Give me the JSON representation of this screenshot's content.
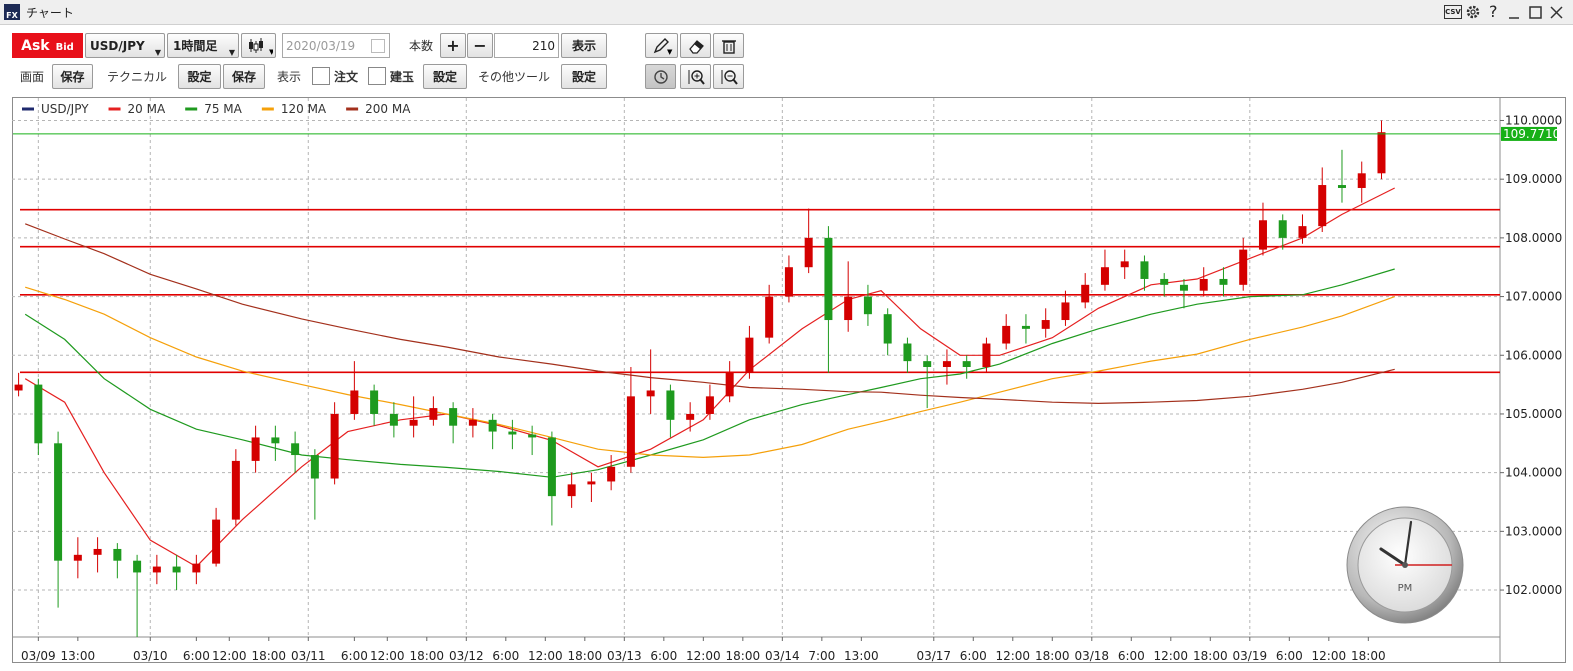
{
  "window": {
    "title": "チャート",
    "logo": "FX",
    "csv": "CSV",
    "help": "?"
  },
  "toolbar": {
    "ask": "Ask",
    "bid": "Bid",
    "pair": "USD/JPY",
    "timeframe": "1時間足",
    "date": "2020/03/19",
    "count_label": "本数",
    "plus": "+",
    "minus": "−",
    "count": 210,
    "show": "表示",
    "screen_label": "画面",
    "screen_save": "保存",
    "technical_label": "テクニカル",
    "technical_settings": "設定",
    "technical_save": "保存",
    "display_label": "表示",
    "orders": "注文",
    "positions": "建玉",
    "display_settings": "設定",
    "other_tools_label": "その他ツール",
    "other_tools_settings": "設定"
  },
  "chart_data": {
    "type": "candlestick",
    "name": "USD/JPY",
    "color": "#1f2a6e",
    "up_color": "#d40000",
    "down_color": "#1e9a1e",
    "xlim": [
      0,
      226
    ],
    "ylim": [
      101.2,
      110.4
    ],
    "yticks": [
      {
        "value": 102,
        "label": "102.0000"
      },
      {
        "value": 103,
        "label": "103.0000"
      },
      {
        "value": 104,
        "label": "104.0000"
      },
      {
        "value": 105,
        "label": "105.0000"
      },
      {
        "value": 106,
        "label": "106.0000"
      },
      {
        "value": 107,
        "label": "107.0000"
      },
      {
        "value": 108,
        "label": "108.0000"
      },
      {
        "value": 109,
        "label": "109.0000"
      },
      {
        "value": 110,
        "label": "110.0000"
      }
    ],
    "xticks": [
      {
        "value": 4,
        "label": "03/09"
      },
      {
        "value": 10,
        "label": "13:00"
      },
      {
        "value": 21,
        "label": "03/10"
      },
      {
        "value": 28,
        "label": "6:00"
      },
      {
        "value": 33,
        "label": "12:00"
      },
      {
        "value": 39,
        "label": "18:00"
      },
      {
        "value": 45,
        "label": "03/11"
      },
      {
        "value": 52,
        "label": "6:00"
      },
      {
        "value": 57,
        "label": "12:00"
      },
      {
        "value": 63,
        "label": "18:00"
      },
      {
        "value": 69,
        "label": "03/12"
      },
      {
        "value": 75,
        "label": "6:00"
      },
      {
        "value": 81,
        "label": "12:00"
      },
      {
        "value": 87,
        "label": "18:00"
      },
      {
        "value": 93,
        "label": "03/13"
      },
      {
        "value": 99,
        "label": "6:00"
      },
      {
        "value": 105,
        "label": "12:00"
      },
      {
        "value": 111,
        "label": "18:00"
      },
      {
        "value": 117,
        "label": "03/14"
      },
      {
        "value": 123,
        "label": "7:00"
      },
      {
        "value": 129,
        "label": "13:00"
      },
      {
        "value": 140,
        "label": "03/17"
      },
      {
        "value": 146,
        "label": "6:00"
      },
      {
        "value": 152,
        "label": "12:00"
      },
      {
        "value": 158,
        "label": "18:00"
      },
      {
        "value": 164,
        "label": "03/18"
      },
      {
        "value": 170,
        "label": "6:00"
      },
      {
        "value": 176,
        "label": "12:00"
      },
      {
        "value": 182,
        "label": "18:00"
      },
      {
        "value": 188,
        "label": "03/19"
      },
      {
        "value": 194,
        "label": "6:00"
      },
      {
        "value": 200,
        "label": "12:00"
      },
      {
        "value": 206,
        "label": "18:00"
      }
    ],
    "grid": true,
    "x": [
      1,
      4,
      7,
      10,
      13,
      16,
      19,
      22,
      25,
      28,
      31,
      34,
      37,
      40,
      43,
      46,
      49,
      52,
      55,
      58,
      61,
      64,
      67,
      70,
      73,
      76,
      79,
      82,
      85,
      88,
      91,
      94,
      97,
      100,
      103,
      106,
      109,
      112,
      115,
      118,
      121,
      124,
      127,
      130,
      133,
      136,
      139,
      142,
      145,
      148,
      151,
      154,
      157,
      160,
      163,
      166,
      169,
      172,
      175,
      178,
      181,
      184,
      187,
      190,
      193,
      196,
      199,
      202,
      205,
      208
    ],
    "candles": [
      [
        105.4,
        105.7,
        105.3,
        105.5
      ],
      [
        105.5,
        105.6,
        104.3,
        104.5
      ],
      [
        104.5,
        104.7,
        101.7,
        102.5
      ],
      [
        102.5,
        102.9,
        102.2,
        102.6
      ],
      [
        102.6,
        102.9,
        102.3,
        102.7
      ],
      [
        102.7,
        102.8,
        102.2,
        102.5
      ],
      [
        102.5,
        102.6,
        101.2,
        102.3
      ],
      [
        102.3,
        102.6,
        102.1,
        102.4
      ],
      [
        102.4,
        102.6,
        102.0,
        102.3
      ],
      [
        102.3,
        102.6,
        102.1,
        102.45
      ],
      [
        102.45,
        103.4,
        102.4,
        103.2
      ],
      [
        103.2,
        104.4,
        103.1,
        104.2
      ],
      [
        104.2,
        104.8,
        104.0,
        104.6
      ],
      [
        104.6,
        104.8,
        104.2,
        104.5
      ],
      [
        104.5,
        104.7,
        104.0,
        104.3
      ],
      [
        104.3,
        104.4,
        103.2,
        103.9
      ],
      [
        103.9,
        105.2,
        103.8,
        105.0
      ],
      [
        105.0,
        105.9,
        104.9,
        105.4
      ],
      [
        105.4,
        105.5,
        104.8,
        105.0
      ],
      [
        105.0,
        105.2,
        104.6,
        104.8
      ],
      [
        104.8,
        105.3,
        104.6,
        104.9
      ],
      [
        104.9,
        105.3,
        104.8,
        105.1
      ],
      [
        105.1,
        105.2,
        104.5,
        104.8
      ],
      [
        104.8,
        105.1,
        104.6,
        104.9
      ],
      [
        104.9,
        105.0,
        104.4,
        104.7
      ],
      [
        104.7,
        104.9,
        104.4,
        104.65
      ],
      [
        104.65,
        104.8,
        104.3,
        104.6
      ],
      [
        104.6,
        104.7,
        103.1,
        103.6
      ],
      [
        103.6,
        104.0,
        103.4,
        103.8
      ],
      [
        103.8,
        104.0,
        103.5,
        103.85
      ],
      [
        103.85,
        104.3,
        103.7,
        104.1
      ],
      [
        104.1,
        105.8,
        104.0,
        105.3
      ],
      [
        105.3,
        106.1,
        105.0,
        105.4
      ],
      [
        105.4,
        105.5,
        104.6,
        104.9
      ],
      [
        104.9,
        105.2,
        104.7,
        105.0
      ],
      [
        105.0,
        105.5,
        104.9,
        105.3
      ],
      [
        105.3,
        105.9,
        105.2,
        105.7
      ],
      [
        105.7,
        106.5,
        105.6,
        106.3
      ],
      [
        106.3,
        107.2,
        106.2,
        107.0
      ],
      [
        107.0,
        107.7,
        106.9,
        107.5
      ],
      [
        107.5,
        108.5,
        107.4,
        108.0
      ],
      [
        108.0,
        108.2,
        105.7,
        106.6
      ],
      [
        106.6,
        107.6,
        106.4,
        107.0
      ],
      [
        107.0,
        107.2,
        106.5,
        106.7
      ],
      [
        106.7,
        106.8,
        106.0,
        106.2
      ],
      [
        106.2,
        106.3,
        105.7,
        105.9
      ],
      [
        105.9,
        106.0,
        105.1,
        105.8
      ],
      [
        105.8,
        106.1,
        105.5,
        105.9
      ],
      [
        105.9,
        106.0,
        105.6,
        105.8
      ],
      [
        105.8,
        106.3,
        105.7,
        106.2
      ],
      [
        106.2,
        106.7,
        106.1,
        106.5
      ],
      [
        106.5,
        106.7,
        106.2,
        106.45
      ],
      [
        106.45,
        106.8,
        106.3,
        106.6
      ],
      [
        106.6,
        107.1,
        106.5,
        106.9
      ],
      [
        106.9,
        107.4,
        106.8,
        107.2
      ],
      [
        107.2,
        107.8,
        107.1,
        107.5
      ],
      [
        107.5,
        107.8,
        107.3,
        107.6
      ],
      [
        107.6,
        107.7,
        107.1,
        107.3
      ],
      [
        107.3,
        107.4,
        107.0,
        107.2
      ],
      [
        107.2,
        107.3,
        106.8,
        107.1
      ],
      [
        107.1,
        107.5,
        107.0,
        107.3
      ],
      [
        107.3,
        107.5,
        107.0,
        107.2
      ],
      [
        107.2,
        108.0,
        107.1,
        107.8
      ],
      [
        107.8,
        108.6,
        107.7,
        108.3
      ],
      [
        108.3,
        108.4,
        107.8,
        108.0
      ],
      [
        108.0,
        108.4,
        107.9,
        108.2
      ],
      [
        108.2,
        109.2,
        108.1,
        108.9
      ],
      [
        108.9,
        109.5,
        108.6,
        108.85
      ],
      [
        108.85,
        109.3,
        108.6,
        109.1
      ],
      [
        109.1,
        110.0,
        109.0,
        109.8
      ]
    ],
    "series": [
      {
        "name": "20 MA",
        "color": "#e52020",
        "x": [
          2,
          8,
          14,
          21,
          28,
          35,
          44,
          51,
          59,
          66,
          74,
          82,
          89,
          97,
          105,
          112,
          120,
          127,
          132,
          138,
          144,
          150,
          158,
          165,
          173,
          180,
          188,
          196,
          202,
          210
        ],
        "values": [
          105.6,
          105.2,
          104.0,
          102.85,
          102.4,
          103.2,
          104.1,
          104.7,
          104.9,
          105.0,
          104.8,
          104.55,
          104.1,
          104.4,
          104.9,
          105.75,
          106.45,
          106.95,
          107.1,
          106.45,
          106.0,
          106.0,
          106.3,
          106.8,
          107.2,
          107.3,
          107.65,
          108.0,
          108.4,
          108.85
        ]
      },
      {
        "name": "75 MA",
        "color": "#1f9a1f",
        "x": [
          2,
          8,
          14,
          21,
          28,
          35,
          44,
          51,
          59,
          66,
          74,
          82,
          89,
          97,
          105,
          112,
          120,
          127,
          132,
          138,
          144,
          150,
          158,
          165,
          173,
          180,
          188,
          196,
          202,
          210
        ],
        "values": [
          106.7,
          106.27,
          105.6,
          105.08,
          104.74,
          104.56,
          104.3,
          104.22,
          104.14,
          104.09,
          104.02,
          103.92,
          104.05,
          104.3,
          104.56,
          104.9,
          105.16,
          105.33,
          105.45,
          105.6,
          105.68,
          105.85,
          106.2,
          106.45,
          106.7,
          106.87,
          107.0,
          107.03,
          107.2,
          107.47
        ]
      },
      {
        "name": "120 MA",
        "color": "#f5a00a",
        "x": [
          2,
          8,
          14,
          21,
          28,
          35,
          44,
          51,
          59,
          66,
          74,
          82,
          89,
          97,
          105,
          112,
          120,
          127,
          132,
          138,
          144,
          150,
          158,
          165,
          173,
          180,
          188,
          196,
          202,
          210
        ],
        "values": [
          107.16,
          106.95,
          106.7,
          106.3,
          105.97,
          105.73,
          105.5,
          105.33,
          105.16,
          105.0,
          104.82,
          104.6,
          104.4,
          104.3,
          104.26,
          104.3,
          104.48,
          104.74,
          104.87,
          105.04,
          105.2,
          105.37,
          105.6,
          105.73,
          105.9,
          106.02,
          106.27,
          106.48,
          106.67,
          107.0
        ]
      },
      {
        "name": "200 MA",
        "color": "#a3301c",
        "x": [
          2,
          8,
          14,
          21,
          28,
          35,
          44,
          51,
          59,
          66,
          74,
          82,
          89,
          97,
          105,
          112,
          120,
          127,
          132,
          138,
          144,
          150,
          158,
          165,
          173,
          180,
          188,
          196,
          202,
          210
        ],
        "values": [
          108.24,
          107.98,
          107.73,
          107.38,
          107.13,
          106.87,
          106.62,
          106.45,
          106.27,
          106.14,
          105.97,
          105.85,
          105.73,
          105.62,
          105.54,
          105.45,
          105.42,
          105.38,
          105.37,
          105.32,
          105.28,
          105.25,
          105.2,
          105.18,
          105.2,
          105.23,
          105.3,
          105.42,
          105.54,
          105.76
        ]
      }
    ],
    "hlines": [
      {
        "value": 108.48,
        "color": "#e00000"
      },
      {
        "value": 107.85,
        "color": "#e00000"
      },
      {
        "value": 107.03,
        "color": "#e00000"
      },
      {
        "value": 105.71,
        "color": "#e00000"
      }
    ],
    "last": {
      "value": 109.771,
      "label": "109.7710",
      "color": "#17b017"
    }
  },
  "clock": {
    "label": "PM"
  }
}
